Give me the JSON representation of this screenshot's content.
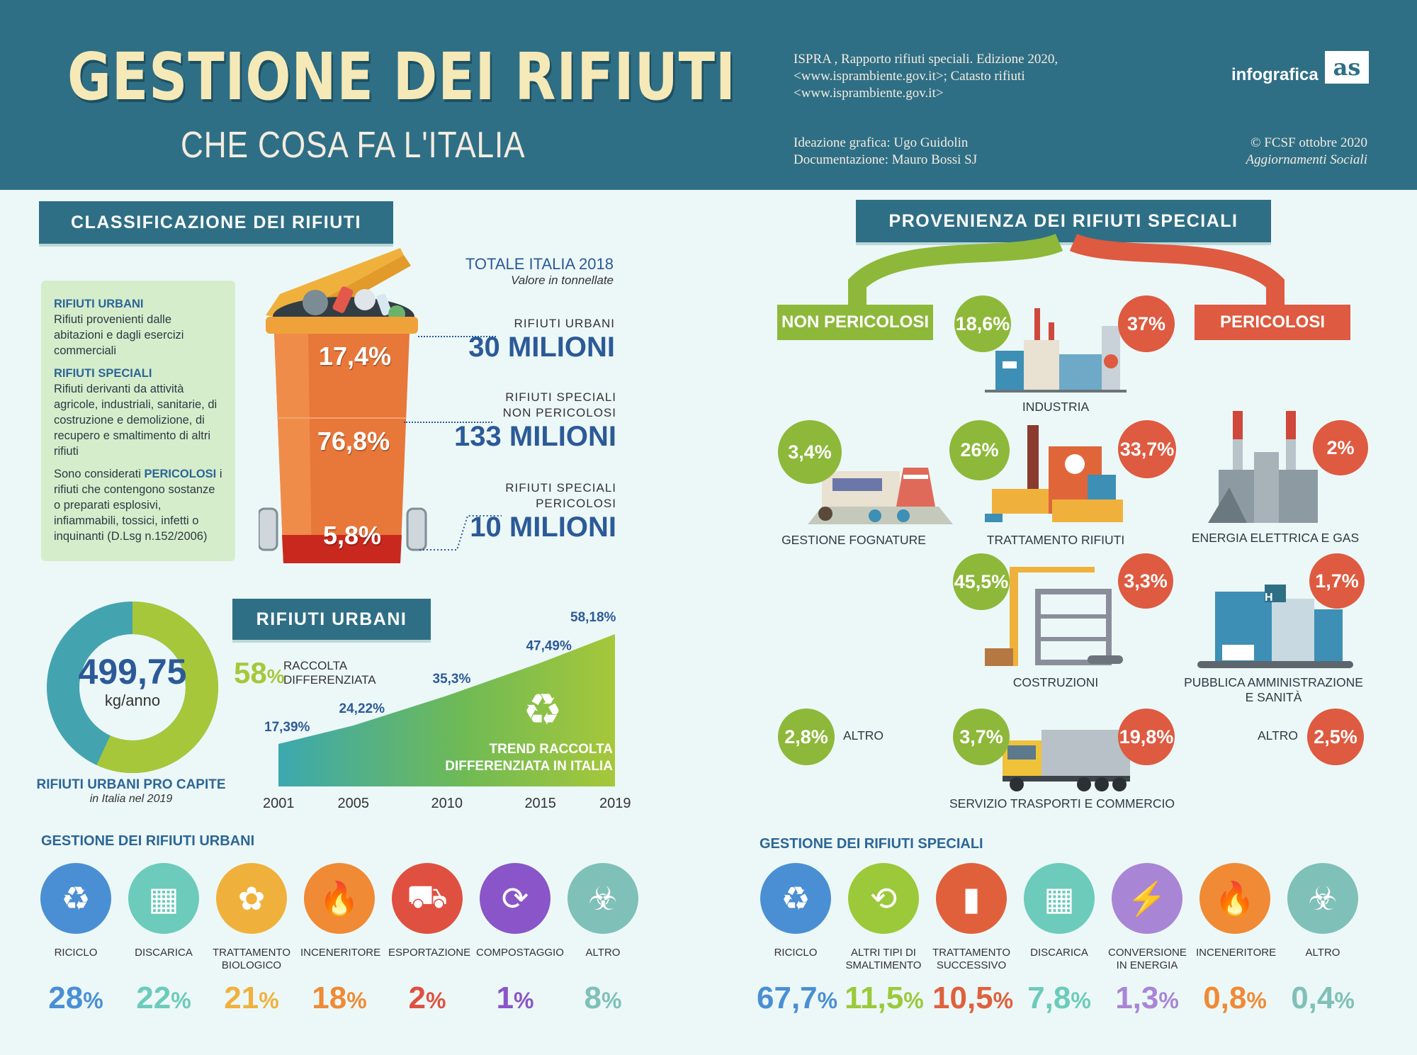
{
  "header": {
    "title": "GESTIONE DEI RIFIUTI",
    "subtitle": "CHE COSA FA L'ITALIA",
    "source_line1": "ISPRA , Rapporto rifiuti speciali. Edizione 2020,",
    "source_line2": "<www.isprambiente.gov.it>; Catasto rifiuti",
    "source_line3": "<www.isprambiente.gov.it>",
    "credit_design": "Ideazione grafica: Ugo Guidolin",
    "credit_doc": "Documentazione: Mauro Bossi  SJ",
    "copyright": "© FCSF ottobre 2020",
    "publication": "Aggiornamenti Sociali",
    "logo_text": "infografica",
    "logo_mark": "as"
  },
  "classification": {
    "banner": "CLASSIFICAZIONE DEI RIFIUTI",
    "urbani_title": "RIFIUTI URBANI",
    "urbani_desc": "Rifiuti provenienti dalle abitazioni e dagli esercizi commerciali",
    "speciali_title": "RIFIUTI SPECIALI",
    "speciali_desc": "Rifiuti derivanti da attività agricole, industriali, sanitarie, di costruzione e demolizione, di recupero e smaltimento di altri rifiuti",
    "pericolosi_pre": "Sono considerati ",
    "pericolosi_kw": "PERICOLOSI",
    "pericolosi_desc": " i rifiuti che contengono sostanze o preparati esplosivi, infiammabili, tossici, infetti o inquinanti (D.Lsg n.152/2006)"
  },
  "totals": {
    "title": "TOTALE ITALIA 2018",
    "subtitle": "Valore in tonnellate",
    "items": [
      {
        "label1": "RIFIUTI URBANI",
        "label2": "",
        "value": "30 MILIONI",
        "share": "17,4%"
      },
      {
        "label1": "RIFIUTI SPECIALI",
        "label2": "NON PERICOLOSI",
        "value": "133 MILIONI",
        "share": "76,8%"
      },
      {
        "label1": "RIFIUTI SPECIALI",
        "label2": "PERICOLOSI",
        "value": "10 MILIONI",
        "share": "5,8%"
      }
    ]
  },
  "procapite": {
    "value": "499,75",
    "unit": "kg/anno",
    "title": "RIFIUTI URBANI PRO CAPITE",
    "subtitle": "in Italia nel 2019",
    "colors": {
      "green": "#a6c73a",
      "teal": "#43a4b0"
    }
  },
  "urbani_trend": {
    "banner": "RIFIUTI URBANI",
    "pct": "58",
    "pct_sign": "%",
    "label1": "RACCOLTA",
    "label2": "DIFFERENZIATA",
    "chart_label1": "TREND RACCOLTA",
    "chart_label2": "DIFFERENZIATA IN ITALIA"
  },
  "chart_data": {
    "type": "area",
    "x": [
      "2001",
      "2005",
      "2010",
      "2015",
      "2019"
    ],
    "values": [
      17.39,
      24.22,
      35.3,
      47.49,
      58.18
    ],
    "value_labels": [
      "17,39%",
      "24,22%",
      "35,3%",
      "47,49%",
      "58,18%"
    ],
    "title": "TREND RACCOLTA DIFFERENZIATA IN ITALIA"
  },
  "gestione_urbani": {
    "title": "GESTIONE DEI RIFIUTI URBANI",
    "items": [
      {
        "label1": "RICICLO",
        "label2": "",
        "pct": "28",
        "icon": "recycle-icon",
        "color": "#4a8fd3"
      },
      {
        "label1": "DISCARICA",
        "label2": "",
        "pct": "22",
        "icon": "factory-icon",
        "color": "#6ccbbb"
      },
      {
        "label1": "TRATTAMENTO",
        "label2": "BIOLOGICO",
        "pct": "21",
        "icon": "organic-icon",
        "color": "#f0b13c"
      },
      {
        "label1": "INCENERITORE",
        "label2": "",
        "pct": "18",
        "icon": "flame-icon",
        "color": "#f08a35"
      },
      {
        "label1": "ESPORTAZIONE",
        "label2": "",
        "pct": "2",
        "icon": "truck-icon",
        "color": "#df5040"
      },
      {
        "label1": "COMPOSTAGGIO",
        "label2": "",
        "pct": "1",
        "icon": "compost-icon",
        "color": "#8a55c8"
      },
      {
        "label1": "ALTRO",
        "label2": "",
        "pct": "8",
        "icon": "biohazard-icon",
        "color": "#7fc0b8"
      }
    ]
  },
  "provenienza": {
    "banner": "PROVENIENZA DEI RIFIUTI SPECIALI",
    "non_pericolosi": "NON PERICOLOSI",
    "pericolosi": "PERICOLOSI",
    "industria": {
      "label": "INDUSTRIA",
      "np": "18,6%",
      "p": "37%"
    },
    "fognature": {
      "label": "GESTIONE FOGNATURE",
      "np": "3,4%"
    },
    "trattamento": {
      "label": "TRATTAMENTO RIFIUTI",
      "np": "26%",
      "p": "33,7%"
    },
    "energia": {
      "label": "ENERGIA ELETTRICA E GAS",
      "p": "2%"
    },
    "costruzioni": {
      "label": "COSTRUZIONI",
      "np": "45,5%",
      "p": "3,3%"
    },
    "pubblica": {
      "label1": "PUBBLICA AMMINISTRAZIONE",
      "label2": "E SANITÀ",
      "p": "1,7%",
      "sign": "H"
    },
    "altro_np": {
      "label": "ALTRO",
      "np": "2,8%"
    },
    "altro_p": {
      "label": "ALTRO",
      "p": "2,5%"
    },
    "trasporti": {
      "label": "SERVIZIO TRASPORTI E COMMERCIO",
      "np": "3,7%",
      "p": "19,8%"
    }
  },
  "gestione_speciali": {
    "title": "GESTIONE DEI RIFIUTI SPECIALI",
    "items": [
      {
        "label1": "RICICLO",
        "label2": "",
        "pct": "67,7",
        "icon": "recycle-icon",
        "color": "#4a8fd3"
      },
      {
        "label1": "ALTRI TIPI DI",
        "label2": "SMALTIMENTO",
        "pct": "11,5",
        "icon": "box-cycle-icon",
        "color": "#9bc93a"
      },
      {
        "label1": "TRATTAMENTO",
        "label2": "SUCCESSIVO",
        "pct": "10,5",
        "icon": "barrel-icon",
        "color": "#e0603c"
      },
      {
        "label1": "DISCARICA",
        "label2": "",
        "pct": "7,8",
        "icon": "factory-icon",
        "color": "#6ccbbb"
      },
      {
        "label1": "CONVERSIONE",
        "label2": "IN ENERGIA",
        "pct": "1,3",
        "icon": "lightning-icon",
        "color": "#a985d6"
      },
      {
        "label1": "INCENERITORE",
        "label2": "",
        "pct": "0,8",
        "icon": "flame-icon",
        "color": "#f08a35"
      },
      {
        "label1": "ALTRO",
        "label2": "",
        "pct": "0,4",
        "icon": "biohazard-icon",
        "color": "#7fc0b8"
      }
    ]
  }
}
